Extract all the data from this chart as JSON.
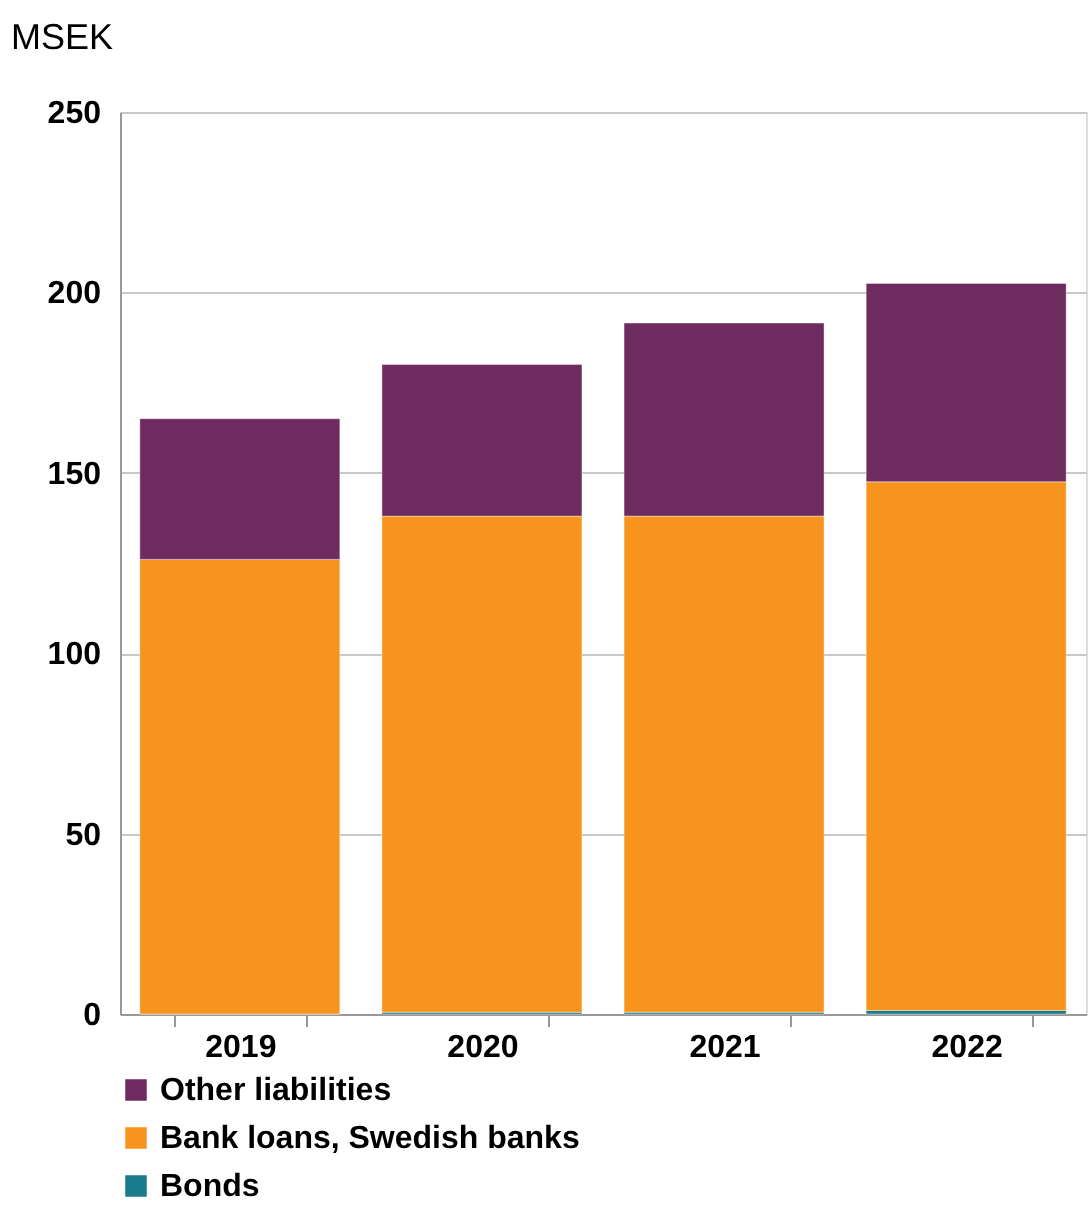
{
  "chart_data": {
    "type": "bar",
    "stacked": true,
    "ylabel": "MSEK",
    "categories": [
      "2019",
      "2020",
      "2021",
      "2022"
    ],
    "series": [
      {
        "name": "Bonds",
        "color": "#1a7b8a",
        "values": [
          0,
          0.5,
          0.5,
          1
        ]
      },
      {
        "name": "Bank loans, Swedish banks",
        "color": "#f7941e",
        "values": [
          126,
          137.5,
          137.5,
          146.5
        ]
      },
      {
        "name": "Other liabilities",
        "color": "#6d2b5f",
        "values": [
          39,
          42,
          53.5,
          55
        ]
      }
    ],
    "ylim": [
      0,
      250
    ],
    "yticks": [
      0,
      50,
      100,
      150,
      200,
      250
    ],
    "grid": "y",
    "legend": "bottom"
  }
}
